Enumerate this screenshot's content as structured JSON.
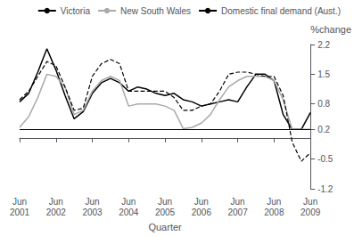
{
  "chart_data": {
    "type": "line",
    "xlabel": "Quarter",
    "ylabel": "%change",
    "categories": [
      "Jun\n2001",
      null,
      null,
      null,
      "Jun\n2002",
      null,
      null,
      null,
      "Jun\n2003",
      null,
      null,
      null,
      "Jun\n2004",
      null,
      null,
      null,
      "Jun\n2005",
      null,
      null,
      null,
      "Jun\n2006",
      null,
      null,
      null,
      "Jun\n2007",
      null,
      null,
      null,
      "Jun\n2008",
      null,
      null,
      null,
      "Jun\n2009"
    ],
    "series": [
      {
        "name": "Victoria",
        "color": "#000000",
        "line_style": "solid",
        "values": [
          0.85,
          1.05,
          1.55,
          2.1,
          1.6,
          1.0,
          0.45,
          0.62,
          1.05,
          1.3,
          1.4,
          1.3,
          1.1,
          1.2,
          1.15,
          1.05,
          1.0,
          1.05,
          0.9,
          0.85,
          0.75,
          0.8,
          0.85,
          0.9,
          0.85,
          1.2,
          1.5,
          1.5,
          1.35,
          0.55,
          0.2,
          0.2,
          0.6
        ]
      },
      {
        "name": "New South Wales",
        "color": "#aaaaaa",
        "line_style": "solid",
        "values": [
          0.25,
          0.5,
          0.95,
          1.5,
          1.45,
          1.2,
          0.55,
          0.65,
          1.1,
          1.35,
          1.45,
          1.35,
          0.75,
          0.8,
          0.8,
          0.8,
          0.75,
          0.65,
          0.22,
          0.25,
          0.35,
          0.55,
          0.9,
          1.2,
          1.35,
          1.45,
          1.45,
          1.45,
          1.35,
          0.9,
          0.2,
          0.2,
          0.2
        ]
      },
      {
        "name": "Domestic final demand (Aust.)",
        "color": "#000000",
        "line_style": "dashed",
        "values": [
          0.9,
          1.1,
          1.45,
          1.8,
          1.7,
          1.2,
          0.65,
          0.7,
          1.45,
          1.75,
          1.85,
          1.75,
          1.1,
          1.1,
          1.1,
          1.1,
          1.1,
          0.95,
          0.65,
          0.65,
          0.75,
          0.8,
          1.1,
          1.5,
          1.55,
          1.55,
          1.5,
          1.45,
          1.45,
          1.0,
          -0.1,
          -0.55,
          -0.35
        ]
      }
    ],
    "ylim": [
      -1.2,
      2.2
    ],
    "yticks": [
      -1.2,
      -0.5,
      0.2,
      0.8,
      1.5,
      2.2
    ],
    "hline": 0.2,
    "grid": false,
    "legend": "upper right"
  }
}
